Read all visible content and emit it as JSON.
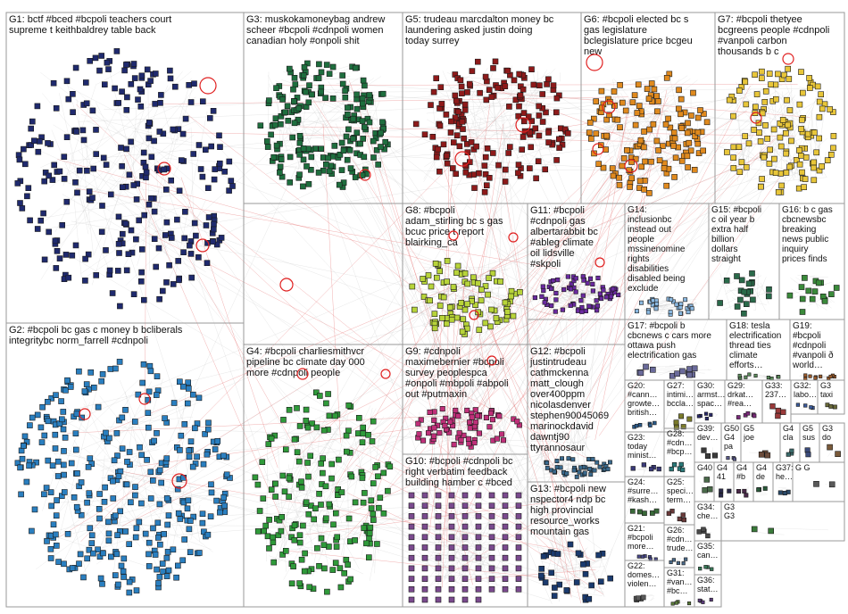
{
  "colors": {
    "edge": "#b9b9b9",
    "edge_cross": "#e05050",
    "self_loop": "#e02020",
    "box_border": "#9a9a9a"
  },
  "groups": [
    {
      "id": "G1",
      "label": "G1: bctf #bced #bcpoli teachers court supreme t keithbaldrey table back",
      "color": "#1f2a6e",
      "nodes": 260
    },
    {
      "id": "G2",
      "label": "G2: #bcpoli bc gas c money b bcliberals integritybc norm_farrell #cdnpoli",
      "color": "#2a7fc0",
      "nodes": 320
    },
    {
      "id": "G3",
      "label": "G3: muskokamoneybag andrew scheer #bcpoli #cdnpoli women canadian holy #onpoli shit",
      "color": "#1e6e3e",
      "nodes": 200
    },
    {
      "id": "G4",
      "label": "G4: #bcpoli charliesmithvcr pipeline bc climate day 000 more #cdnpoli people",
      "color": "#2f9a3a",
      "nodes": 180
    },
    {
      "id": "G5",
      "label": "G5: trudeau marcdalton money bc laundering asked justin doing today surrey",
      "color": "#8e1a1a",
      "nodes": 170
    },
    {
      "id": "G6",
      "label": "G6: #bcpoli elected bc s gas legislature bclegislature price bcgeu new",
      "color": "#e08a1e",
      "nodes": 140
    },
    {
      "id": "G7",
      "label": "G7: #bcpoli thetyee bcgreens people #cdnpoli #vanpoli carbon thousands b c",
      "color": "#e8c63a",
      "nodes": 130
    },
    {
      "id": "G8",
      "label": "G8: #bcpoli adam_stirling bc s gas bcuc price t report blairking_ca",
      "color": "#b8d43a",
      "nodes": 90
    },
    {
      "id": "G9",
      "label": "G9: #cdnpoli maximebernier #bcpoli survey peoplespca #onpoli #mbpoli #abpoli out #putmaxin",
      "color": "#c0307a",
      "nodes": 70
    },
    {
      "id": "G10",
      "label": "G10: #bcpoli #cdnpoli bc right verbatim feedback building hamber c #bced",
      "color": "#7a4a8e",
      "nodes": 96
    },
    {
      "id": "G11",
      "label": "G11: #bcpoli #cdnpoli gas albertarabbit bc #ableg climate oil lidsville #skpoli",
      "color": "#6a2aa0",
      "nodes": 70
    },
    {
      "id": "G12",
      "label": "G12: #bcpoli justintrudeau cathmckenna matt_clough over400ppm nicolasdenver stephen90045069 marinockdavid dawntj90 ttyrannosaur",
      "color": "#3a6a8e",
      "nodes": 40
    },
    {
      "id": "G13",
      "label": "G13: #bcpoli new nspector4 ndp bc high provincial resource_works mountain gas",
      "color": "#1a3a6e",
      "nodes": 30
    },
    {
      "id": "G14",
      "label": "G14: inclusionbc instead out people mssinenomine rights disabilities disabled being exclude",
      "color": "#8ab8e0",
      "nodes": 30
    },
    {
      "id": "G15",
      "label": "G15: #bcpoli c oil year b extra half billion dollars straight",
      "color": "#2a6a4a",
      "nodes": 20
    },
    {
      "id": "G16",
      "label": "G16: b c gas cbcnewsbc breaking news public inquiry prices finds",
      "color": "#3a8a3a",
      "nodes": 16
    },
    {
      "id": "G17",
      "label": "G17: #bcpoli b cbcnews c cars more ottawa push electrification gas",
      "color": "#6a6a9a",
      "nodes": 12
    },
    {
      "id": "G18",
      "label": "G18: tesla electrification thread ties climate efforts…",
      "color": "#5a8a5a",
      "nodes": 10
    },
    {
      "id": "G19",
      "label": "G19: #bcpoli #cdnpoli #vanpoli ð world…",
      "color": "#9a5a2a",
      "nodes": 10
    },
    {
      "id": "G20",
      "label": "G20: #cann… growte… british…",
      "color": "#2a5a8a",
      "nodes": 6
    },
    {
      "id": "G21",
      "label": "G21: #bcpoli more…",
      "color": "#4a4a8a",
      "nodes": 6
    },
    {
      "id": "G22",
      "label": "G22: domes… violen…",
      "color": "#5a5a5a",
      "nodes": 5
    },
    {
      "id": "G23",
      "label": "G23: today minist…",
      "color": "#3a3a7a",
      "nodes": 5
    },
    {
      "id": "G24",
      "label": "G24: #surre… #kash…",
      "color": "#3a6a3a",
      "nodes": 5
    },
    {
      "id": "G25",
      "label": "G25: speci… term…",
      "color": "#6a3a3a",
      "nodes": 5
    },
    {
      "id": "G26",
      "label": "G26: #cdn… trude…",
      "color": "#4a6a8a",
      "nodes": 5
    },
    {
      "id": "G27",
      "label": "G27: intimi… bccla…",
      "color": "#7a7a2a",
      "nodes": 5
    },
    {
      "id": "G28",
      "label": "G28: #cdn… #bcp…",
      "color": "#2a7a7a",
      "nodes": 5
    },
    {
      "id": "G29",
      "label": "G29: drkat… #rea…",
      "color": "#7a2a7a",
      "nodes": 5
    },
    {
      "id": "G30",
      "label": "G30: armst… spac…",
      "color": "#2a2a6a",
      "nodes": 5
    },
    {
      "id": "G31",
      "label": "G31: #van… #bc…",
      "color": "#5a7a3a",
      "nodes": 4
    },
    {
      "id": "G32",
      "label": "G32: labo…",
      "color": "#3a5a9a",
      "nodes": 4
    },
    {
      "id": "G33",
      "label": "G33: 237…",
      "color": "#9a3a3a",
      "nodes": 4
    },
    {
      "id": "G34",
      "label": "G34: che…",
      "color": "#4a4a4a",
      "nodes": 4
    },
    {
      "id": "G35",
      "label": "G35: can…",
      "color": "#3a7a5a",
      "nodes": 4
    },
    {
      "id": "G36",
      "label": "G36: stat…",
      "color": "#5a3a7a",
      "nodes": 4
    },
    {
      "id": "G37",
      "label": "G37: he…",
      "color": "#2a4a6a",
      "nodes": 3
    },
    {
      "id": "G38",
      "label": "G3 taxi",
      "color": "#6a6a3a",
      "nodes": 3
    },
    {
      "id": "G39",
      "label": "G39: dev…",
      "color": "#3a3a3a",
      "nodes": 3
    },
    {
      "id": "G40",
      "label": "G40",
      "color": "#4a6a4a",
      "nodes": 3
    },
    {
      "id": "G50",
      "label": "G50 G4 pa",
      "color": "#5a5a8a",
      "nodes": 3
    },
    {
      "id": "G5x",
      "label": "G5 joe",
      "color": "#6a4a3a",
      "nodes": 3
    },
    {
      "id": "G4x1",
      "label": "G4 cla",
      "color": "#3a6a6a",
      "nodes": 3
    },
    {
      "id": "G4x2",
      "label": "G4 41",
      "color": "#2a2a4a",
      "nodes": 3
    },
    {
      "id": "G4x3",
      "label": "G4 #b",
      "color": "#4a2a4a",
      "nodes": 3
    },
    {
      "id": "G4x4",
      "label": "G4 de",
      "color": "#2a5a3a",
      "nodes": 3
    },
    {
      "id": "G3x1",
      "label": "G5 sus",
      "color": "#3a4a7a",
      "nodes": 2
    },
    {
      "id": "G3x2",
      "label": "G3 do",
      "color": "#7a5a3a",
      "nodes": 2
    },
    {
      "id": "G3x3",
      "label": "G3 G3",
      "color": "#3a7a3a",
      "nodes": 2
    },
    {
      "id": "Gx",
      "label": "G G",
      "color": "#5a5a5a",
      "nodes": 2
    }
  ]
}
